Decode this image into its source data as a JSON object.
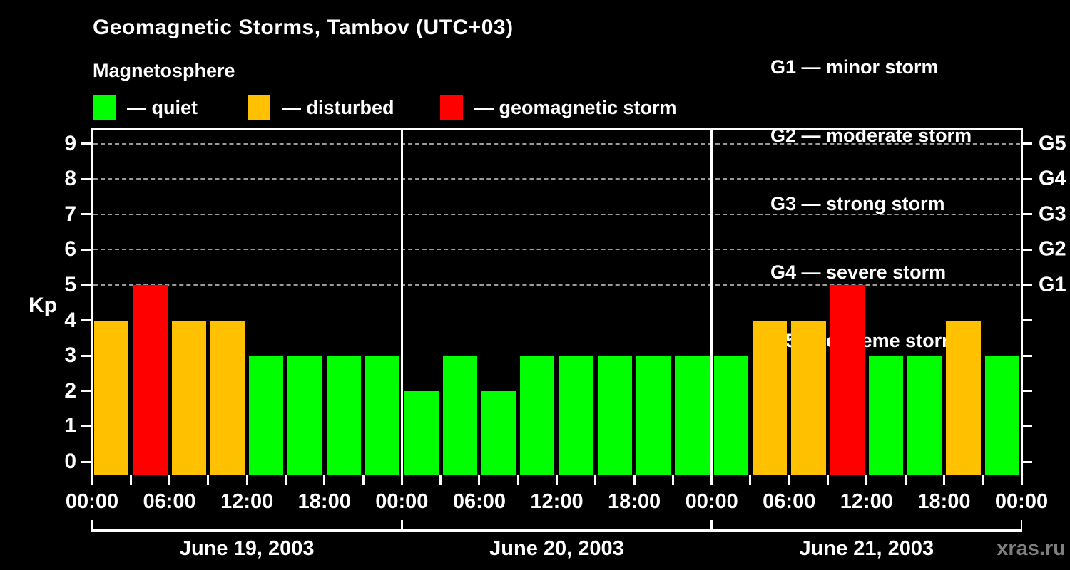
{
  "page": {
    "title": "Geomagnetic Storms, Tambov (UTC+03)",
    "subtitle": "Magnetosphere",
    "watermark": "xras.ru"
  },
  "legend": {
    "items": [
      {
        "name": "quiet",
        "label": "— quiet",
        "color": "#00ff00"
      },
      {
        "name": "disturbed",
        "label": "— disturbed",
        "color": "#ffc000"
      },
      {
        "name": "storm",
        "label": "— geomagnetic storm",
        "color": "#ff0000"
      }
    ]
  },
  "storm_scale_legend": {
    "items": [
      "G1 — minor storm",
      "G2 — moderate storm",
      "G3 — strong storm",
      "G4 — severe storm",
      "G5 — extreme storm"
    ]
  },
  "chart_data": {
    "type": "bar",
    "title": "Geomagnetic Storms, Tambov (UTC+03)",
    "subtitle": "Magnetosphere",
    "ylabel": "Kp",
    "xlabel": "",
    "ylim": [
      0,
      9.4
    ],
    "yticks": [
      0,
      1,
      2,
      3,
      4,
      5,
      6,
      7,
      8,
      9
    ],
    "grid_levels": [
      5,
      6,
      7,
      8,
      9
    ],
    "grid_style": "dashed",
    "legend_position": "top-left",
    "right_axis": [
      {
        "value": 5,
        "label": "G1"
      },
      {
        "value": 6,
        "label": "G2"
      },
      {
        "value": 7,
        "label": "G3"
      },
      {
        "value": 8,
        "label": "G4"
      },
      {
        "value": 9,
        "label": "G5"
      }
    ],
    "hours_per_bar": 3,
    "x_tick_labels": [
      "00:00",
      "06:00",
      "12:00",
      "18:00",
      "00:00",
      "06:00",
      "12:00",
      "18:00",
      "00:00",
      "06:00",
      "12:00",
      "18:00",
      "00:00"
    ],
    "days": [
      {
        "date": "June 19, 2003",
        "values": [
          4,
          5,
          4,
          4,
          3,
          3,
          3,
          3
        ]
      },
      {
        "date": "June 20, 2003",
        "values": [
          2,
          3,
          2,
          3,
          3,
          3,
          3,
          3
        ]
      },
      {
        "date": "June 21, 2003",
        "values": [
          3,
          4,
          4,
          5,
          3,
          3,
          4,
          3
        ]
      }
    ],
    "color_rule": {
      "quiet_max": 3,
      "disturbed_max": 4
    },
    "colors": {
      "quiet": "#00ff00",
      "disturbed": "#ffc000",
      "storm": "#ff0000",
      "grid": "#9a9a9a",
      "frame": "#ffffff",
      "background": "#000000",
      "text": "#ffffff",
      "watermark": "#7f7f7f"
    }
  }
}
